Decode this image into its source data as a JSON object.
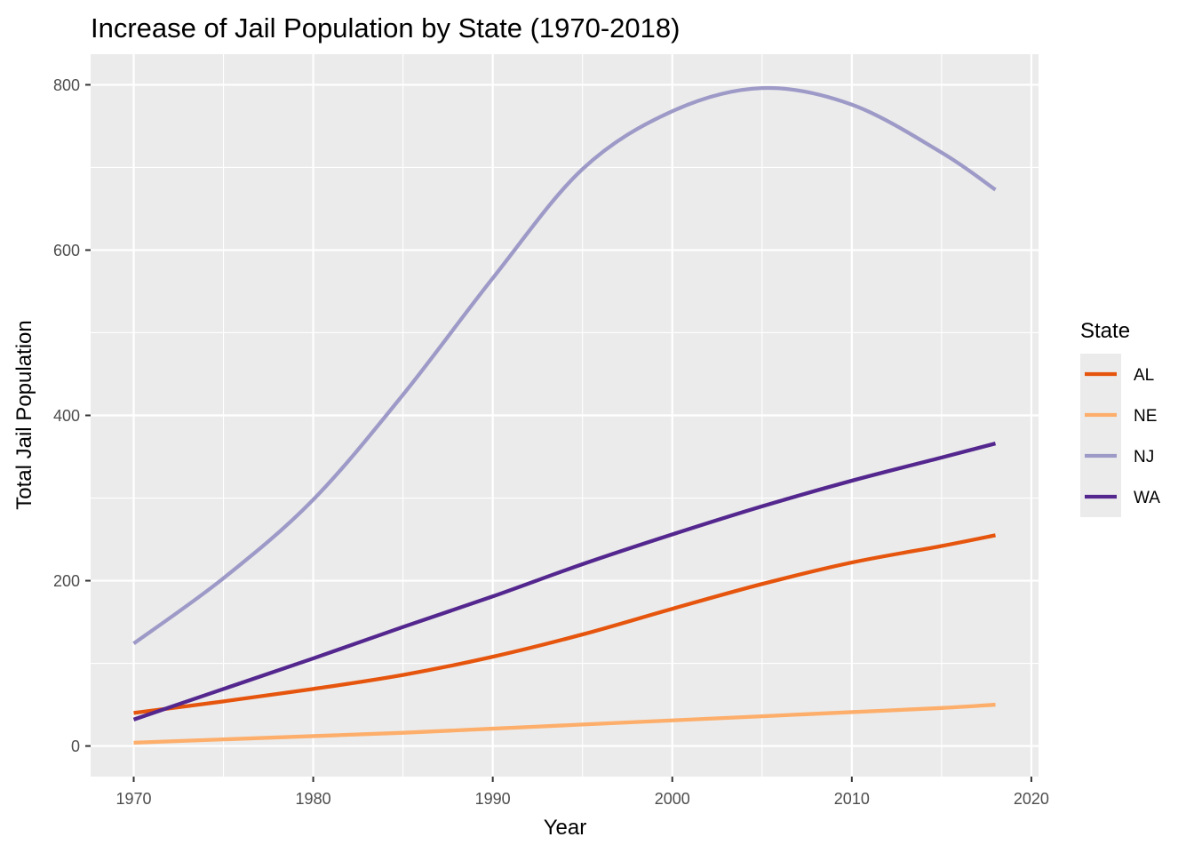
{
  "chart_data": {
    "type": "line",
    "title": "Increase of Jail Population by State (1970-2018)",
    "xlabel": "Year",
    "ylabel": "Total Jail Population",
    "xlim": [
      1967.6,
      2020.4
    ],
    "ylim": [
      -37,
      837
    ],
    "x_ticks": [
      1970,
      1980,
      1990,
      2000,
      2010,
      2020
    ],
    "y_ticks": [
      0,
      200,
      400,
      600,
      800
    ],
    "grid": true,
    "legend": {
      "title": "State",
      "position": "right"
    },
    "x": [
      1970,
      1975,
      1980,
      1985,
      1990,
      1995,
      2000,
      2005,
      2010,
      2015,
      2018
    ],
    "series": [
      {
        "name": "AL",
        "color": "#e6550d",
        "values": [
          40,
          54,
          69,
          86,
          108,
          135,
          166,
          196,
          222,
          242,
          255
        ]
      },
      {
        "name": "NE",
        "color": "#fdae6b",
        "values": [
          4,
          8,
          12,
          16,
          21,
          26,
          31,
          36,
          41,
          46,
          50
        ]
      },
      {
        "name": "NJ",
        "color": "#9e9ac8",
        "values": [
          124,
          203,
          298,
          425,
          566,
          698,
          768,
          796,
          776,
          718,
          673
        ]
      },
      {
        "name": "WA",
        "color": "#54278f",
        "values": [
          32,
          69,
          106,
          144,
          181,
          220,
          256,
          290,
          321,
          349,
          366
        ]
      }
    ]
  }
}
